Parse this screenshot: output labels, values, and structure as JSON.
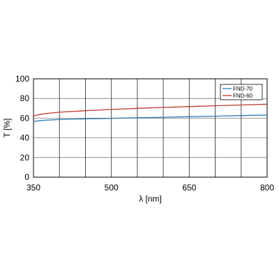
{
  "chart_data": {
    "type": "line",
    "title": "",
    "xlabel": "λ [nm]",
    "ylabel": "T [%]",
    "xlim": [
      350,
      800
    ],
    "ylim": [
      0,
      100
    ],
    "xticks": [
      350,
      500,
      650,
      800
    ],
    "yticks": [
      0,
      20,
      40,
      60,
      80,
      100
    ],
    "x_gridlines": [
      350,
      400,
      450,
      500,
      550,
      600,
      650,
      700,
      750,
      800
    ],
    "y_gridlines": [
      0,
      20,
      40,
      60,
      80,
      100
    ],
    "grid": true,
    "legend_position": "top-right",
    "x": [
      350,
      360,
      375,
      400,
      450,
      500,
      550,
      600,
      650,
      700,
      750,
      800
    ],
    "series": [
      {
        "name": "FND-70",
        "color": "#2a7db5",
        "values": [
          56.5,
          57.3,
          58.0,
          58.6,
          59.2,
          59.8,
          60.4,
          60.9,
          61.5,
          62.0,
          62.6,
          63.2
        ]
      },
      {
        "name": "FND-60",
        "color": "#c0392b",
        "values": [
          62.0,
          63.6,
          64.8,
          66.0,
          67.6,
          68.9,
          70.0,
          70.9,
          71.8,
          72.6,
          73.4,
          74.2
        ]
      }
    ]
  }
}
